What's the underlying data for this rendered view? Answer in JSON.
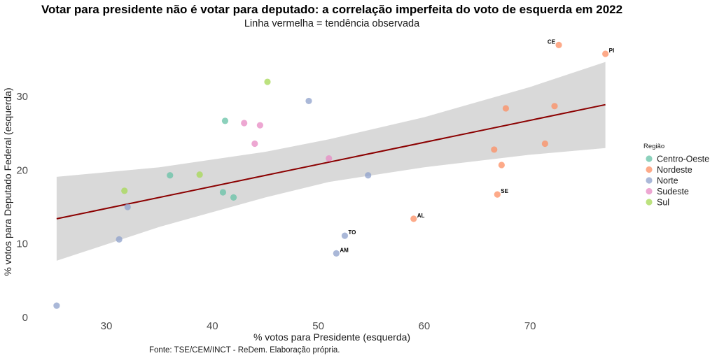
{
  "chart_data": {
    "type": "scatter",
    "title": "Votar para presidente não é votar para deputado: a correlação imperfeita do voto de esquerda em 2022",
    "subtitle": "Linha vermelha = tendência observada",
    "xlabel": "% votos para Presidente (esquerda)",
    "ylabel": "% votos para Deputado Federal (esquerda)",
    "caption": "Fonte: TSE/CEM/INCT - ReDem. Elaboração própria.",
    "xlim": [
      22.5,
      79.5
    ],
    "ylim": [
      -0.7,
      39
    ],
    "xticks": [
      30,
      40,
      50,
      60,
      70
    ],
    "yticks": [
      0,
      10,
      20,
      30
    ],
    "grid": false,
    "legend": {
      "title": "Região",
      "position": "right",
      "entries": [
        {
          "name": "Centro-Oeste",
          "color": "#66C2A5"
        },
        {
          "name": "Nordeste",
          "color": "#FC8D62"
        },
        {
          "name": "Norte",
          "color": "#8DA0CB"
        },
        {
          "name": "Sudeste",
          "color": "#E78AC3"
        },
        {
          "name": "Sul",
          "color": "#A6D854"
        }
      ]
    },
    "points": [
      {
        "x": 25.3,
        "y": 1.6,
        "region": "Norte",
        "label": ""
      },
      {
        "x": 31.2,
        "y": 10.6,
        "region": "Norte",
        "label": ""
      },
      {
        "x": 32.0,
        "y": 15.0,
        "region": "Norte",
        "label": ""
      },
      {
        "x": 31.7,
        "y": 17.2,
        "region": "Sul",
        "label": ""
      },
      {
        "x": 36.0,
        "y": 19.3,
        "region": "Centro-Oeste",
        "label": ""
      },
      {
        "x": 38.8,
        "y": 19.4,
        "region": "Sul",
        "label": ""
      },
      {
        "x": 41.0,
        "y": 17.0,
        "region": "Centro-Oeste",
        "label": ""
      },
      {
        "x": 42.0,
        "y": 16.3,
        "region": "Centro-Oeste",
        "label": ""
      },
      {
        "x": 41.2,
        "y": 26.7,
        "region": "Centro-Oeste",
        "label": ""
      },
      {
        "x": 43.0,
        "y": 26.4,
        "region": "Sudeste",
        "label": ""
      },
      {
        "x": 44.5,
        "y": 26.1,
        "region": "Sudeste",
        "label": ""
      },
      {
        "x": 44.0,
        "y": 23.6,
        "region": "Sudeste",
        "label": ""
      },
      {
        "x": 45.2,
        "y": 32.0,
        "region": "Sul",
        "label": ""
      },
      {
        "x": 49.1,
        "y": 29.4,
        "region": "Norte",
        "label": ""
      },
      {
        "x": 51.0,
        "y": 21.6,
        "region": "Sudeste",
        "label": ""
      },
      {
        "x": 54.7,
        "y": 19.3,
        "region": "Norte",
        "label": ""
      },
      {
        "x": 52.5,
        "y": 11.1,
        "region": "Norte",
        "label": "TO"
      },
      {
        "x": 51.7,
        "y": 8.7,
        "region": "Norte",
        "label": "AM"
      },
      {
        "x": 59.0,
        "y": 13.4,
        "region": "Nordeste",
        "label": "AL"
      },
      {
        "x": 66.9,
        "y": 16.7,
        "region": "Nordeste",
        "label": "SE"
      },
      {
        "x": 67.3,
        "y": 20.7,
        "region": "Nordeste",
        "label": ""
      },
      {
        "x": 66.6,
        "y": 22.8,
        "region": "Nordeste",
        "label": ""
      },
      {
        "x": 67.7,
        "y": 28.4,
        "region": "Nordeste",
        "label": ""
      },
      {
        "x": 72.3,
        "y": 28.7,
        "region": "Nordeste",
        "label": ""
      },
      {
        "x": 71.4,
        "y": 23.6,
        "region": "Nordeste",
        "label": ""
      },
      {
        "x": 72.7,
        "y": 37.0,
        "region": "Nordeste",
        "label": "CE"
      },
      {
        "x": 77.1,
        "y": 35.8,
        "region": "Nordeste",
        "label": "PI"
      }
    ],
    "trend": {
      "color": "#8B0000",
      "x": [
        25.3,
        77.1
      ],
      "y": [
        13.4,
        28.9
      ],
      "ci_x": [
        25.3,
        35,
        45,
        51,
        60,
        70,
        77.1
      ],
      "ci_upper": [
        19.1,
        20.4,
        22.5,
        24.2,
        27.2,
        31.3,
        34.7
      ],
      "ci_lower": [
        7.7,
        12.3,
        16.3,
        18.4,
        20.4,
        22.1,
        23.0
      ],
      "ci_color": "#D9D9D9"
    }
  }
}
